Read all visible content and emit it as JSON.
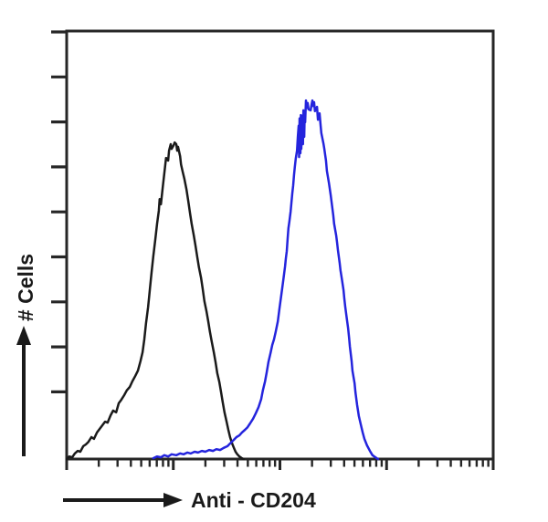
{
  "figure": {
    "y_axis_label": "# Cells",
    "x_axis_label": "Anti - CD204",
    "colors": {
      "frame": "#262626",
      "text": "#1a1a1a",
      "black_curve": "#1a1a1a",
      "blue_curve": "#2424dd",
      "background": "#ffffff"
    }
  },
  "chart_data": {
    "type": "line",
    "subtype": "flow-cytometry-histogram-overlay",
    "title": "",
    "xlabel": "Anti - CD204",
    "ylabel": "# Cells",
    "legend": "none",
    "layout": {
      "frame": "full box",
      "y_scale": "linear, 9 unlabeled outward ticks",
      "x_scale": "logarithmic style, 4 decades of unlabeled minor ticks",
      "tick_labels": "none",
      "units": "points are [x_percent_of_axis, y_percent_of_axis]"
    },
    "axis_ranges": {
      "x_pct": [
        0,
        100
      ],
      "y_pct": [
        0,
        100
      ]
    },
    "series": [
      {
        "name": "black-histogram-curve",
        "color": "#1a1a1a",
        "peak_x_pct": 25.3,
        "peak_y_pct": 73.8,
        "points": [
          [
            0,
            0
          ],
          [
            0.6,
            0.6
          ],
          [
            1.3,
            0.4
          ],
          [
            1.9,
            1.3
          ],
          [
            2.6,
            1.9
          ],
          [
            3.2,
            1.7
          ],
          [
            3.9,
            3.0
          ],
          [
            4.5,
            3.4
          ],
          [
            5.1,
            4.0
          ],
          [
            5.8,
            5.1
          ],
          [
            6.4,
            4.7
          ],
          [
            7.1,
            6.2
          ],
          [
            7.7,
            7.0
          ],
          [
            8.4,
            7.9
          ],
          [
            9.0,
            8.7
          ],
          [
            9.6,
            8.5
          ],
          [
            10.3,
            10.2
          ],
          [
            10.9,
            11.3
          ],
          [
            11.6,
            10.9
          ],
          [
            12.2,
            13.0
          ],
          [
            12.8,
            13.8
          ],
          [
            13.5,
            14.9
          ],
          [
            14.1,
            16.0
          ],
          [
            14.8,
            16.8
          ],
          [
            15.4,
            18.1
          ],
          [
            16.1,
            19.4
          ],
          [
            16.7,
            20.6
          ],
          [
            17.3,
            22.8
          ],
          [
            17.8,
            24.9
          ],
          [
            18.2,
            27.9
          ],
          [
            18.6,
            31.7
          ],
          [
            19.1,
            35.5
          ],
          [
            19.5,
            39.6
          ],
          [
            19.9,
            43.4
          ],
          [
            20.3,
            47.2
          ],
          [
            20.8,
            51.3
          ],
          [
            21.2,
            54.9
          ],
          [
            21.6,
            57.9
          ],
          [
            21.8,
            60.6
          ],
          [
            22.1,
            59.4
          ],
          [
            22.5,
            63.2
          ],
          [
            22.9,
            66.6
          ],
          [
            23.1,
            68.5
          ],
          [
            23.3,
            70.2
          ],
          [
            23.8,
            69.6
          ],
          [
            24.0,
            71.9
          ],
          [
            24.4,
            73.4
          ],
          [
            24.6,
            72.3
          ],
          [
            25.1,
            73.2
          ],
          [
            25.3,
            73.8
          ],
          [
            25.7,
            73.4
          ],
          [
            25.9,
            71.9
          ],
          [
            26.1,
            72.8
          ],
          [
            26.6,
            70.6
          ],
          [
            26.8,
            68.7
          ],
          [
            27.2,
            67.0
          ],
          [
            27.6,
            65.3
          ],
          [
            28.1,
            62.8
          ],
          [
            28.5,
            60.2
          ],
          [
            28.9,
            57.4
          ],
          [
            29.3,
            54.9
          ],
          [
            29.8,
            52.1
          ],
          [
            30.2,
            49.8
          ],
          [
            30.6,
            47.2
          ],
          [
            31.0,
            44.7
          ],
          [
            31.5,
            42.3
          ],
          [
            31.9,
            39.6
          ],
          [
            32.3,
            36.8
          ],
          [
            32.8,
            34.3
          ],
          [
            33.2,
            32.1
          ],
          [
            33.6,
            29.6
          ],
          [
            34.0,
            27.4
          ],
          [
            34.5,
            24.9
          ],
          [
            34.9,
            22.6
          ],
          [
            35.3,
            20.0
          ],
          [
            35.8,
            17.9
          ],
          [
            36.2,
            15.5
          ],
          [
            36.6,
            13.2
          ],
          [
            37.0,
            10.9
          ],
          [
            37.5,
            8.7
          ],
          [
            37.9,
            6.8
          ],
          [
            38.3,
            5.1
          ],
          [
            38.8,
            3.6
          ],
          [
            39.2,
            2.6
          ],
          [
            39.6,
            1.7
          ],
          [
            40.0,
            1.1
          ],
          [
            40.5,
            0.6
          ],
          [
            41.1,
            0.2
          ],
          [
            41.5,
            0
          ]
        ]
      },
      {
        "name": "blue-histogram-curve",
        "color": "#2424dd",
        "peak_x_pct": 57.6,
        "peak_y_pct": 83.6,
        "points": [
          [
            20.3,
            0.2
          ],
          [
            21.2,
            0.6
          ],
          [
            22.1,
            0.4
          ],
          [
            22.9,
            0.9
          ],
          [
            23.8,
            0.6
          ],
          [
            24.6,
            1.1
          ],
          [
            25.7,
            0.9
          ],
          [
            26.6,
            1.3
          ],
          [
            27.4,
            1.1
          ],
          [
            28.3,
            1.5
          ],
          [
            29.1,
            1.3
          ],
          [
            30.0,
            1.7
          ],
          [
            30.8,
            1.5
          ],
          [
            31.7,
            1.9
          ],
          [
            32.5,
            1.7
          ],
          [
            33.4,
            2.1
          ],
          [
            34.3,
            1.9
          ],
          [
            35.1,
            2.3
          ],
          [
            36.0,
            2.1
          ],
          [
            36.8,
            2.6
          ],
          [
            37.7,
            3.0
          ],
          [
            38.1,
            3.4
          ],
          [
            38.5,
            3.8
          ],
          [
            39.2,
            4.5
          ],
          [
            39.8,
            5.1
          ],
          [
            40.5,
            5.5
          ],
          [
            41.1,
            6.2
          ],
          [
            41.8,
            6.8
          ],
          [
            42.4,
            7.4
          ],
          [
            43.0,
            8.3
          ],
          [
            43.7,
            9.4
          ],
          [
            44.3,
            10.6
          ],
          [
            45.0,
            12.1
          ],
          [
            45.6,
            14.0
          ],
          [
            46.0,
            16.0
          ],
          [
            46.5,
            18.1
          ],
          [
            46.9,
            20.2
          ],
          [
            47.3,
            22.6
          ],
          [
            47.8,
            24.7
          ],
          [
            48.2,
            26.6
          ],
          [
            48.6,
            27.9
          ],
          [
            49.0,
            29.6
          ],
          [
            49.5,
            32.1
          ],
          [
            49.9,
            35.1
          ],
          [
            50.3,
            38.1
          ],
          [
            50.7,
            41.1
          ],
          [
            51.2,
            44.9
          ],
          [
            51.4,
            46.8
          ],
          [
            51.6,
            48.5
          ],
          [
            51.8,
            51.3
          ],
          [
            52.0,
            53.8
          ],
          [
            52.2,
            55.3
          ],
          [
            52.5,
            57.7
          ],
          [
            52.7,
            59.8
          ],
          [
            52.9,
            61.9
          ],
          [
            53.1,
            63.8
          ],
          [
            53.3,
            66.2
          ],
          [
            53.5,
            68.1
          ],
          [
            53.7,
            70.0
          ],
          [
            54.0,
            71.9
          ],
          [
            54.2,
            75.1
          ],
          [
            54.4,
            77.7
          ],
          [
            54.5,
            70.4
          ],
          [
            54.6,
            79.4
          ],
          [
            54.8,
            71.3
          ],
          [
            54.9,
            80.2
          ],
          [
            55.0,
            72.3
          ],
          [
            55.2,
            80.0
          ],
          [
            55.4,
            73.4
          ],
          [
            55.5,
            81.3
          ],
          [
            55.7,
            75.1
          ],
          [
            55.8,
            80.4
          ],
          [
            55.9,
            78.5
          ],
          [
            56.1,
            83.6
          ],
          [
            56.3,
            81.9
          ],
          [
            56.5,
            83.0
          ],
          [
            56.7,
            81.5
          ],
          [
            57.2,
            81.3
          ],
          [
            57.4,
            82.6
          ],
          [
            57.6,
            83.6
          ],
          [
            57.8,
            82.3
          ],
          [
            58.0,
            83.2
          ],
          [
            58.2,
            81.1
          ],
          [
            58.7,
            82.1
          ],
          [
            58.9,
            79.1
          ],
          [
            59.3,
            80.6
          ],
          [
            59.5,
            78.1
          ],
          [
            59.7,
            76.0
          ],
          [
            60.2,
            73.6
          ],
          [
            60.4,
            72.3
          ],
          [
            60.8,
            69.6
          ],
          [
            61.0,
            67.2
          ],
          [
            61.5,
            64.3
          ],
          [
            61.9,
            61.5
          ],
          [
            62.3,
            58.5
          ],
          [
            62.5,
            56.8
          ],
          [
            62.7,
            54.9
          ],
          [
            63.2,
            52.1
          ],
          [
            63.4,
            50.4
          ],
          [
            63.6,
            48.7
          ],
          [
            64.0,
            45.7
          ],
          [
            64.2,
            44.0
          ],
          [
            64.5,
            42.1
          ],
          [
            64.9,
            39.4
          ],
          [
            65.1,
            37.4
          ],
          [
            65.3,
            35.5
          ],
          [
            65.7,
            32.6
          ],
          [
            66.0,
            30.4
          ],
          [
            66.2,
            28.3
          ],
          [
            66.4,
            26.2
          ],
          [
            66.8,
            22.8
          ],
          [
            67.0,
            20.6
          ],
          [
            67.5,
            17.7
          ],
          [
            67.7,
            15.5
          ],
          [
            68.1,
            12.6
          ],
          [
            68.5,
            10.0
          ],
          [
            69.0,
            7.9
          ],
          [
            69.4,
            6.2
          ],
          [
            69.8,
            4.7
          ],
          [
            70.4,
            3.2
          ],
          [
            71.1,
            1.9
          ],
          [
            71.7,
            0.9
          ],
          [
            72.4,
            0.4
          ],
          [
            73.0,
            0.0
          ]
        ]
      }
    ]
  }
}
